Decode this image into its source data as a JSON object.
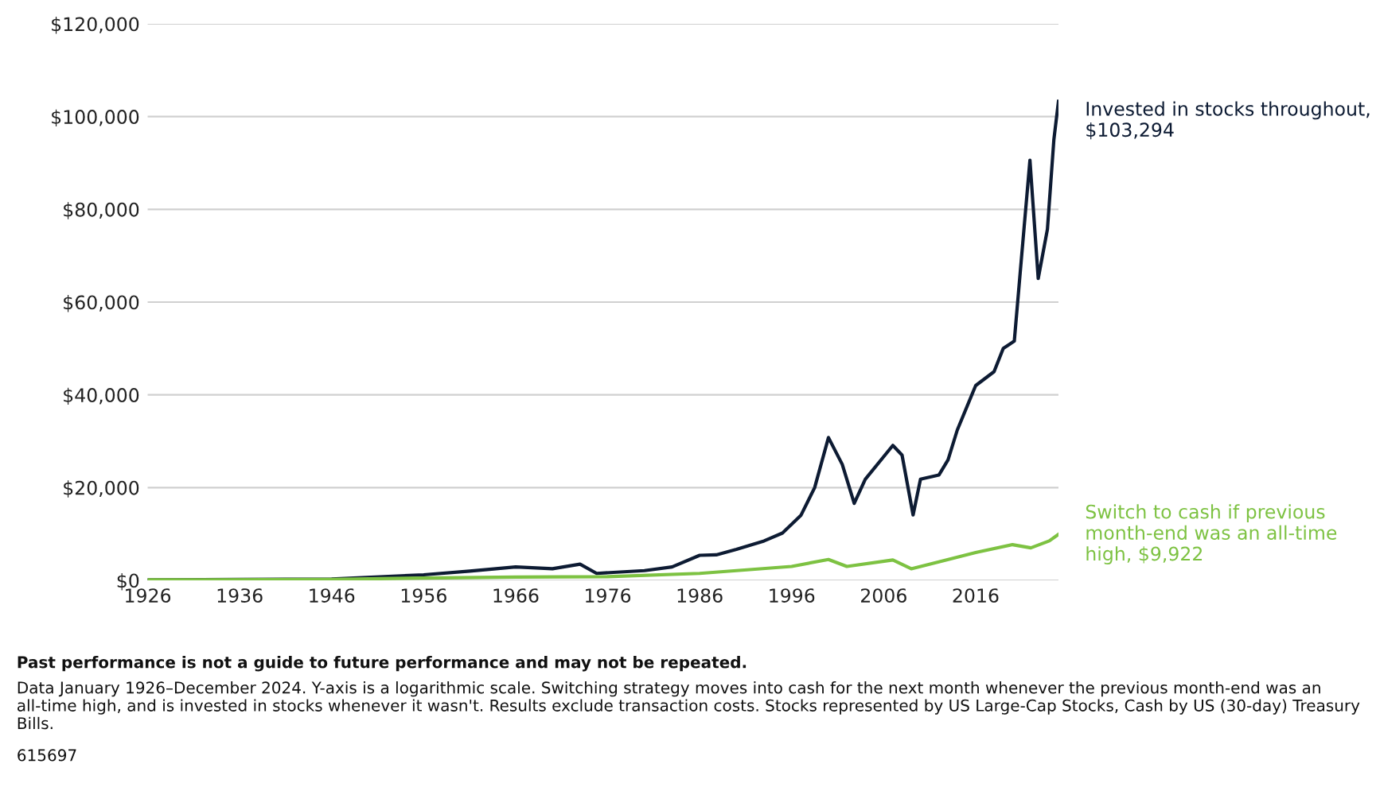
{
  "chart_data": {
    "type": "line",
    "xlim": [
      1926,
      2025
    ],
    "xticks": [
      1926,
      1936,
      1946,
      1956,
      1966,
      1976,
      1986,
      1996,
      2006,
      2016
    ],
    "ylim": [
      0,
      120000
    ],
    "yticks": [
      {
        "value": 0,
        "label": "$0"
      },
      {
        "value": 20000,
        "label": "$20,000"
      },
      {
        "value": 40000,
        "label": "$40,000"
      },
      {
        "value": 60000,
        "label": "$60,000"
      },
      {
        "value": 80000,
        "label": "$80,000"
      },
      {
        "value": 100000,
        "label": "$100,000"
      },
      {
        "value": 120000,
        "label": "$120,000"
      }
    ],
    "grid": "y",
    "legend": false,
    "line_style": "solid",
    "marker": "none",
    "series": [
      {
        "name": "Invested in stocks throughout, $103,294",
        "color": "#0d1b33",
        "x": [
          1926,
          1936,
          1946,
          1956,
          1961,
          1966,
          1970,
          1973,
          1974.8,
          1980,
          1983,
          1986,
          1987.8,
          1990,
          1993,
          1995,
          1997,
          1998.5,
          2000,
          2001.5,
          2002.8,
          2004,
          2007,
          2008,
          2009.2,
          2010,
          2012,
          2013,
          2014,
          2016,
          2018,
          2019,
          2020.2,
          2021,
          2021.9,
          2022.8,
          2023.8,
          2024.5,
          2025
        ],
        "values": [
          100,
          200,
          300,
          1200,
          2000,
          2900,
          2500,
          3500,
          1500,
          2100,
          2900,
          5400,
          5500,
          6700,
          8500,
          10200,
          14000,
          20000,
          30800,
          25000,
          16600,
          21800,
          29100,
          27000,
          14100,
          21800,
          22700,
          26000,
          32400,
          42000,
          45000,
          50000,
          51600,
          70000,
          90600,
          65100,
          75700,
          95000,
          103294
        ]
      },
      {
        "name": "Switch to cash if previous month-end was an all-time high, $9,922",
        "color": "#7dc242",
        "x": [
          1926,
          1946,
          1956,
          1966,
          1976,
          1986,
          1996,
          2000,
          2002,
          2007,
          2009,
          2012,
          2016,
          2020,
          2022,
          2024,
          2025
        ],
        "values": [
          100,
          200,
          500,
          700,
          800,
          1500,
          3000,
          4500,
          3000,
          4400,
          2500,
          4000,
          6000,
          7700,
          7000,
          8500,
          9922
        ]
      }
    ],
    "annotations": [
      "Past performance is not a guide to future performance and may not be repeated.",
      "Data January 1926–December 2024. Y-axis is a logarithmic scale. Switching strategy moves into cash for the next month whenever the previous month-end was an all-time high, and is invested in stocks whenever it wasn't. Results exclude transaction costs. Stocks represented by US Large-Cap Stocks, Cash by US (30-day) Treasury Bills.",
      "615697"
    ]
  }
}
